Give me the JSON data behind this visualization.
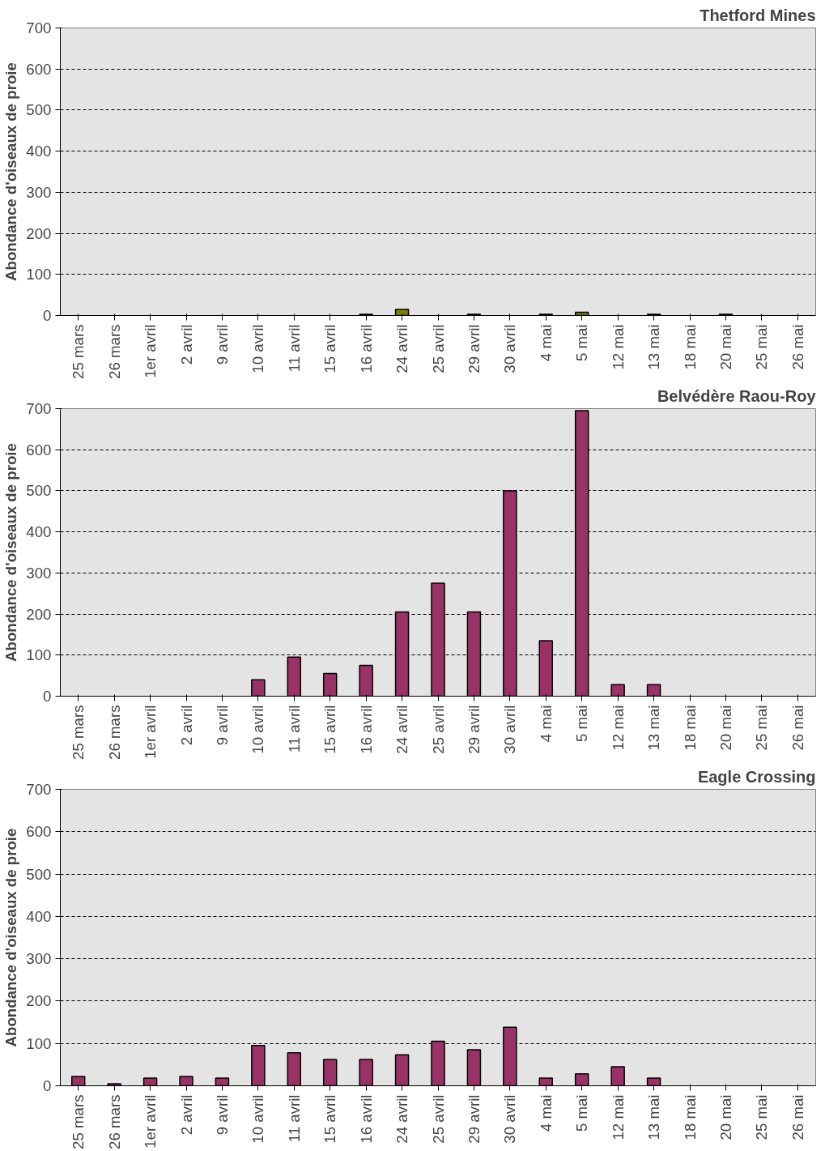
{
  "chart_data": [
    {
      "type": "bar",
      "title": "Thetford Mines",
      "ylabel": "Abondance d'oiseaux de proie",
      "categories": [
        "25 mars",
        "26 mars",
        "1er avril",
        "2 avril",
        "9 avril",
        "10 avril",
        "11 avril",
        "15 avril",
        "16 avril",
        "24 avril",
        "25 avril",
        "29 avril",
        "30 avril",
        "4 mai",
        "5 mai",
        "12 mai",
        "13 mai",
        "18 mai",
        "20 mai",
        "25 mai",
        "26 mai"
      ],
      "series": [
        {
          "color": "#808000",
          "values": [
            0,
            0,
            0,
            0,
            0,
            0,
            0,
            0,
            3,
            15,
            0,
            3,
            0,
            3,
            8,
            0,
            3,
            0,
            3,
            0,
            0
          ]
        }
      ],
      "ylim": [
        0,
        700
      ],
      "yticks": [
        0,
        100,
        200,
        300,
        400,
        500,
        600,
        700
      ],
      "grid": "y"
    },
    {
      "type": "bar",
      "title": "Belvédère Raou-Roy",
      "ylabel": "Abondance d'oiseaux de proie",
      "categories": [
        "25 mars",
        "26 mars",
        "1er avril",
        "2 avril",
        "9 avril",
        "10 avril",
        "11 avril",
        "15 avril",
        "16 avril",
        "24 avril",
        "25 avril",
        "29 avril",
        "30 avril",
        "4 mai",
        "5 mai",
        "12 mai",
        "13 mai",
        "18 mai",
        "20 mai",
        "25 mai",
        "26 mai"
      ],
      "series": [
        {
          "color": "#993366",
          "values": [
            0,
            0,
            0,
            0,
            0,
            40,
            95,
            55,
            75,
            205,
            275,
            205,
            500,
            135,
            695,
            28,
            28,
            0,
            0,
            0,
            0
          ]
        }
      ],
      "ylim": [
        0,
        700
      ],
      "yticks": [
        0,
        100,
        200,
        300,
        400,
        500,
        600,
        700
      ],
      "grid": "y"
    },
    {
      "type": "bar",
      "title": "Eagle Crossing",
      "ylabel": "Abondance d'oiseaux de proie",
      "categories": [
        "25 mars",
        "26 mars",
        "1er avril",
        "2 avril",
        "9 avril",
        "10 avril",
        "11 avril",
        "15 avril",
        "16 avril",
        "24 avril",
        "25 avril",
        "29 avril",
        "30 avril",
        "4 mai",
        "5 mai",
        "12 mai",
        "13 mai",
        "18 mai",
        "20 mai",
        "25 mai",
        "26 mai"
      ],
      "series": [
        {
          "color": "#993366",
          "values": [
            22,
            5,
            18,
            22,
            18,
            95,
            78,
            62,
            62,
            73,
            105,
            85,
            138,
            18,
            28,
            45,
            18,
            0,
            0,
            0,
            0
          ]
        }
      ],
      "ylim": [
        0,
        700
      ],
      "yticks": [
        0,
        100,
        200,
        300,
        400,
        500,
        600,
        700
      ],
      "grid": "y"
    }
  ]
}
